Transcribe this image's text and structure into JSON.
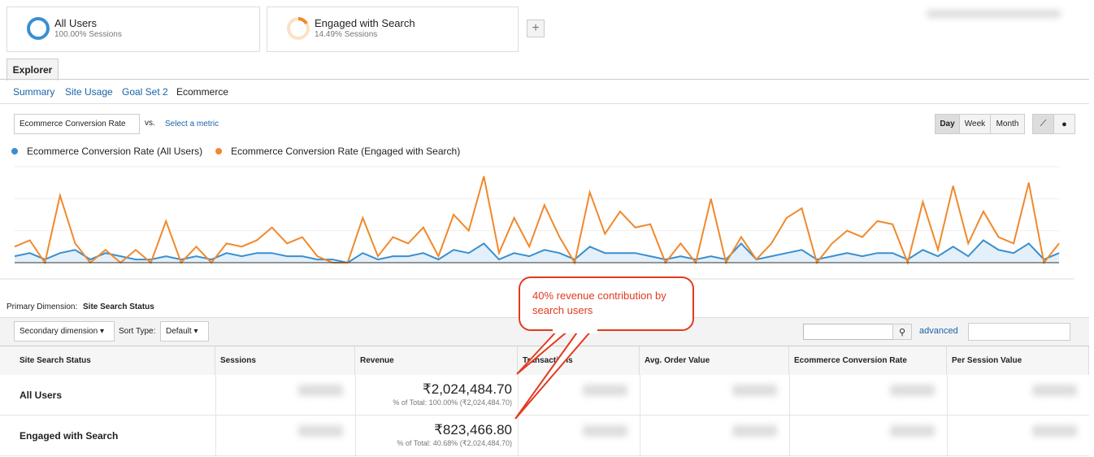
{
  "segments": [
    {
      "name": "All Users",
      "detail": "100.00% Sessions"
    },
    {
      "name": "Engaged with Search",
      "detail": "14.49% Sessions"
    }
  ],
  "tab": "Explorer",
  "subtabs": [
    "Summary",
    "Site Usage",
    "Goal Set 2",
    "Ecommerce"
  ],
  "metric_select": "Ecommerce Conversion Rate",
  "vs": "vs.",
  "select_metric": "Select a metric",
  "period_buttons": [
    "Day",
    "Week",
    "Month"
  ],
  "chart_data": {
    "type": "line",
    "categories": [
      null,
      null,
      null,
      null,
      null,
      null,
      null,
      null,
      null,
      null,
      null,
      null,
      null,
      null,
      null,
      null,
      null,
      null,
      null,
      null,
      null,
      null,
      null,
      null,
      null,
      null,
      null,
      null,
      null,
      null,
      null,
      null,
      null,
      null,
      null,
      null,
      null,
      null,
      null,
      null,
      null,
      null,
      null,
      null,
      null,
      null,
      null,
      null,
      null,
      null,
      null,
      null,
      null,
      null,
      null,
      null,
      null,
      null,
      null,
      null,
      null,
      null,
      null,
      null,
      null,
      null,
      null,
      null,
      null,
      null
    ],
    "series": [
      {
        "name": "Ecommerce Conversion Rate (All Users)",
        "color": "#3a8fd0",
        "values": [
          0.2,
          0.3,
          0.1,
          0.3,
          0.4,
          0.1,
          0.3,
          0.2,
          0.1,
          0.1,
          0.2,
          0.1,
          0.2,
          0.1,
          0.3,
          0.2,
          0.3,
          0.3,
          0.2,
          0.2,
          0.1,
          0.1,
          0,
          0.3,
          0.1,
          0.2,
          0.2,
          0.3,
          0.1,
          0.4,
          0.3,
          0.6,
          0.1,
          0.3,
          0.2,
          0.4,
          0.3,
          0.1,
          0.5,
          0.3,
          0.3,
          0.3,
          0.2,
          0.1,
          0.2,
          0.1,
          0.2,
          0.1,
          0.6,
          0.1,
          0.2,
          0.3,
          0.4,
          0.1,
          0.2,
          0.3,
          0.2,
          0.3,
          0.3,
          0.1,
          0.4,
          0.2,
          0.5,
          0.2,
          0.7,
          0.4,
          0.3,
          0.6,
          0.1,
          0.3
        ]
      },
      {
        "name": "Ecommerce Conversion Rate (Engaged with Search)",
        "color": "#f0892c",
        "values": [
          0.5,
          0.7,
          0,
          2.1,
          0.6,
          0,
          0.4,
          0,
          0.4,
          0,
          1.3,
          0,
          0.5,
          0,
          0.6,
          0.5,
          0.7,
          1.1,
          0.6,
          0.8,
          0.2,
          0,
          0,
          1.4,
          0.2,
          0.8,
          0.6,
          1.1,
          0.2,
          1.5,
          1.0,
          2.7,
          0.3,
          1.4,
          0.5,
          1.8,
          0.8,
          0,
          2.2,
          0.9,
          1.6,
          1.1,
          1.2,
          0,
          0.6,
          0,
          2.0,
          0,
          0.8,
          0.1,
          0.6,
          1.4,
          1.7,
          0,
          0.6,
          1.0,
          0.8,
          1.3,
          1.2,
          0,
          1.9,
          0.4,
          2.4,
          0.6,
          1.6,
          0.8,
          0.6,
          2.5,
          0,
          0.6
        ]
      }
    ],
    "ylim": [
      0,
      3
    ]
  },
  "primary_dimension": {
    "label": "Primary Dimension:",
    "value": "Site Search Status"
  },
  "secondary_dimension": "Secondary dimension",
  "sort_type": {
    "label": "Sort Type:",
    "value": "Default"
  },
  "advanced": "advanced",
  "table": {
    "columns": [
      "Site Search Status",
      "Sessions",
      "Revenue",
      "Transactions",
      "Avg. Order Value",
      "Ecommerce Conversion Rate",
      "Per Session Value"
    ],
    "rows": [
      {
        "name": "All Users",
        "revenue": "₹2,024,484.70",
        "revenue_share": "% of Total: 100.00% (₹2,024,484.70)"
      },
      {
        "name": "Engaged with Search",
        "revenue": "₹823,466.80",
        "revenue_share": "% of Total: 40.68% (₹2,024,484.70)"
      }
    ]
  },
  "annotation": "40% revenue contribution by search users"
}
